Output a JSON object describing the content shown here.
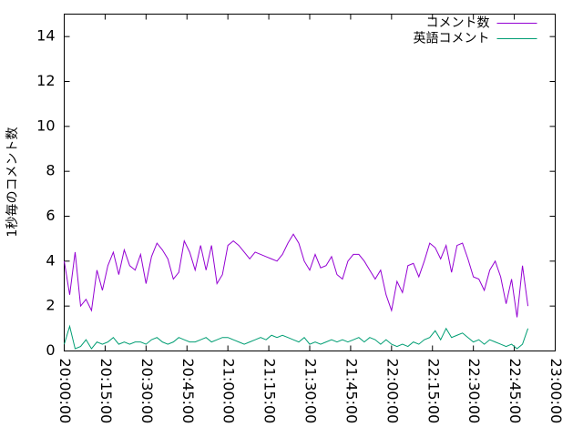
{
  "chart_data": {
    "type": "line",
    "y_label": "1秒毎のコメント数",
    "x": [
      "20:00:00",
      "20:02:00",
      "20:04:00",
      "20:06:00",
      "20:08:00",
      "20:10:00",
      "20:12:00",
      "20:14:00",
      "20:16:00",
      "20:18:00",
      "20:20:00",
      "20:22:00",
      "20:24:00",
      "20:26:00",
      "20:28:00",
      "20:30:00",
      "20:32:00",
      "20:34:00",
      "20:36:00",
      "20:38:00",
      "20:40:00",
      "20:42:00",
      "20:44:00",
      "20:46:00",
      "20:48:00",
      "20:50:00",
      "20:52:00",
      "20:54:00",
      "20:56:00",
      "20:58:00",
      "21:00:00",
      "21:02:00",
      "21:04:00",
      "21:06:00",
      "21:08:00",
      "21:10:00",
      "21:12:00",
      "21:14:00",
      "21:16:00",
      "21:18:00",
      "21:20:00",
      "21:22:00",
      "21:24:00",
      "21:26:00",
      "21:28:00",
      "21:30:00",
      "21:32:00",
      "21:34:00",
      "21:36:00",
      "21:38:00",
      "21:40:00",
      "21:42:00",
      "21:44:00",
      "21:46:00",
      "21:48:00",
      "21:50:00",
      "21:52:00",
      "21:54:00",
      "21:56:00",
      "21:58:00",
      "22:00:00",
      "22:02:00",
      "22:04:00",
      "22:06:00",
      "22:08:00",
      "22:10:00",
      "22:12:00",
      "22:14:00",
      "22:16:00",
      "22:18:00",
      "22:20:00",
      "22:22:00",
      "22:24:00",
      "22:26:00",
      "22:28:00",
      "22:30:00",
      "22:32:00",
      "22:34:00",
      "22:36:00",
      "22:38:00",
      "22:40:00",
      "22:42:00",
      "22:44:00",
      "22:46:00",
      "22:48:00",
      "22:50:00"
    ],
    "series": [
      {
        "name": "コメント数",
        "color": "#9400d3",
        "values": [
          4.0,
          2.5,
          4.4,
          2.0,
          2.3,
          1.8,
          3.6,
          2.7,
          3.8,
          4.4,
          3.4,
          4.5,
          3.8,
          3.6,
          4.3,
          3.0,
          4.2,
          4.8,
          4.5,
          4.1,
          3.2,
          3.5,
          4.9,
          4.4,
          3.6,
          4.7,
          3.6,
          4.7,
          3.0,
          3.4,
          4.7,
          4.9,
          4.7,
          4.4,
          4.1,
          4.4,
          4.3,
          4.2,
          4.1,
          4.0,
          4.3,
          4.8,
          5.2,
          4.8,
          4.0,
          3.6,
          4.3,
          3.7,
          3.8,
          4.2,
          3.4,
          3.2,
          4.0,
          4.3,
          4.3,
          4.0,
          3.6,
          3.2,
          3.6,
          2.5,
          1.8,
          3.1,
          2.6,
          3.8,
          3.9,
          3.3,
          4.0,
          4.8,
          4.6,
          4.1,
          4.7,
          3.5,
          4.7,
          4.8,
          4.1,
          3.3,
          3.2,
          2.7,
          3.6,
          4.0,
          3.3,
          2.1,
          3.2,
          1.5,
          3.8,
          2.0
        ]
      },
      {
        "name": "英語コメント",
        "color": "#009e73",
        "values": [
          0.3,
          1.1,
          0.1,
          0.2,
          0.5,
          0.1,
          0.4,
          0.3,
          0.4,
          0.6,
          0.3,
          0.4,
          0.3,
          0.4,
          0.4,
          0.3,
          0.5,
          0.6,
          0.4,
          0.3,
          0.4,
          0.6,
          0.5,
          0.4,
          0.4,
          0.5,
          0.6,
          0.4,
          0.5,
          0.6,
          0.6,
          0.5,
          0.4,
          0.3,
          0.4,
          0.5,
          0.6,
          0.5,
          0.7,
          0.6,
          0.7,
          0.6,
          0.5,
          0.4,
          0.6,
          0.3,
          0.4,
          0.3,
          0.4,
          0.5,
          0.4,
          0.5,
          0.4,
          0.5,
          0.6,
          0.4,
          0.6,
          0.5,
          0.3,
          0.5,
          0.3,
          0.2,
          0.3,
          0.2,
          0.4,
          0.3,
          0.5,
          0.6,
          0.9,
          0.5,
          1.0,
          0.6,
          0.7,
          0.8,
          0.6,
          0.4,
          0.5,
          0.3,
          0.5,
          0.4,
          0.3,
          0.2,
          0.3,
          0.1,
          0.3,
          1.0
        ]
      }
    ],
    "xlim": [
      "20:00:00",
      "23:00:00"
    ],
    "xticks": [
      "20:00:00",
      "20:15:00",
      "20:30:00",
      "20:45:00",
      "21:00:00",
      "21:15:00",
      "21:30:00",
      "21:45:00",
      "22:00:00",
      "22:15:00",
      "22:30:00",
      "22:45:00",
      "23:00:00"
    ],
    "ylim": [
      0,
      15
    ],
    "yticks": [
      0,
      2,
      4,
      6,
      8,
      10,
      12,
      14
    ],
    "legend": "top-right"
  }
}
